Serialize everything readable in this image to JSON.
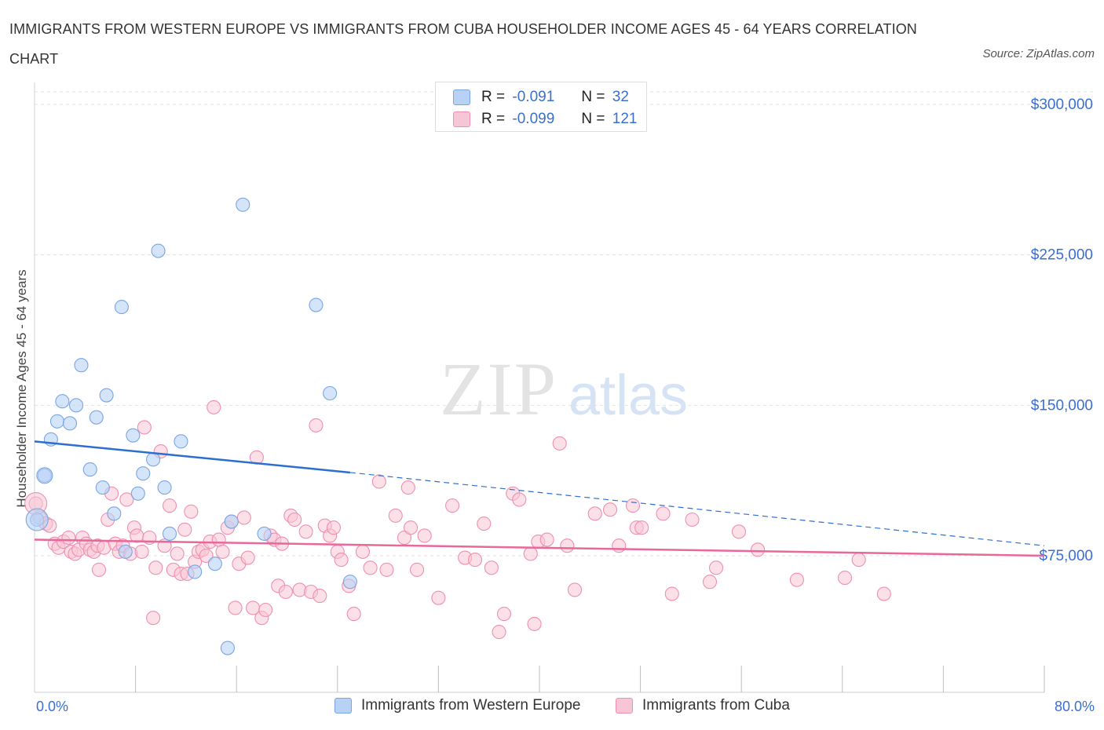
{
  "title": "IMMIGRANTS FROM WESTERN EUROPE VS IMMIGRANTS FROM CUBA HOUSEHOLDER INCOME AGES 45 - 64 YEARS CORRELATION CHART",
  "source": "Source: ZipAtlas.com",
  "watermark": {
    "zip": "ZIP",
    "atlas": "atlas"
  },
  "legend": {
    "rows": [
      {
        "r_label": "R =",
        "r_value": "-0.091",
        "n_label": "N =",
        "n_value": "32"
      },
      {
        "r_label": "R =",
        "r_value": "-0.099",
        "n_label": "N =",
        "n_value": "121"
      }
    ]
  },
  "colors": {
    "blue_fill": "#b8d2f5",
    "blue_stroke": "#7aa5e3",
    "blue_line": "#2d6fcf",
    "pink_fill": "#f7c6d6",
    "pink_stroke": "#ee8fb0",
    "pink_line": "#e8689a",
    "tick_text": "#3a6fd0"
  },
  "chart_data": {
    "type": "scatter",
    "title": "IMMIGRANTS FROM WESTERN EUROPE VS IMMIGRANTS FROM CUBA HOUSEHOLDER INCOME AGES 45 - 64 YEARS CORRELATION CHART",
    "xlabel": "",
    "ylabel": "Householder Income Ages 45 - 64 years",
    "xlim": [
      0,
      80
    ],
    "ylim": [
      0,
      300000
    ],
    "x_tick_labels": [
      "0.0%",
      "80.0%"
    ],
    "y_ticks": [
      75000,
      150000,
      225000,
      300000
    ],
    "y_tick_labels": [
      "$75,000",
      "$150,000",
      "$225,000",
      "$300,000"
    ],
    "grid": true,
    "legend_position": "top-center",
    "series": [
      {
        "name": "Immigrants from Western Europe",
        "color": "#b8d2f5",
        "trend": {
          "x": [
            0,
            25
          ],
          "y": [
            132000,
            116500
          ],
          "dashed_extension": {
            "x": [
              25,
              80
            ],
            "y": [
              116500,
              80000
            ]
          }
        },
        "points": [
          [
            0.2,
            93000
          ],
          [
            0.8,
            115000
          ],
          [
            1.3,
            133000
          ],
          [
            1.8,
            142000
          ],
          [
            2.2,
            152000
          ],
          [
            2.8,
            141000
          ],
          [
            3.3,
            150000
          ],
          [
            3.7,
            170000
          ],
          [
            4.4,
            118000
          ],
          [
            4.9,
            144000
          ],
          [
            5.4,
            109000
          ],
          [
            5.7,
            155000
          ],
          [
            6.3,
            96000
          ],
          [
            6.9,
            199000
          ],
          [
            7.2,
            77000
          ],
          [
            7.8,
            135000
          ],
          [
            8.2,
            106000
          ],
          [
            8.6,
            116000
          ],
          [
            9.4,
            123000
          ],
          [
            9.8,
            227000
          ],
          [
            10.3,
            109000
          ],
          [
            10.7,
            86000
          ],
          [
            11.6,
            132000
          ],
          [
            12.7,
            67000
          ],
          [
            14.3,
            71000
          ],
          [
            15.3,
            29000
          ],
          [
            15.6,
            92000
          ],
          [
            16.5,
            250000
          ],
          [
            18.2,
            86000
          ],
          [
            22.3,
            200000
          ],
          [
            23.4,
            156000
          ],
          [
            25.0,
            62000
          ]
        ]
      },
      {
        "name": "Immigrants from Cuba",
        "color": "#f7c6d6",
        "trend": {
          "x": [
            0,
            80
          ],
          "y": [
            83000,
            75000
          ]
        },
        "points": [
          [
            0.1,
            101000
          ],
          [
            0.4,
            94000
          ],
          [
            0.9,
            91000
          ],
          [
            1.2,
            90000
          ],
          [
            1.6,
            81000
          ],
          [
            1.9,
            79000
          ],
          [
            2.3,
            82000
          ],
          [
            2.7,
            84000
          ],
          [
            2.9,
            77000
          ],
          [
            3.2,
            76000
          ],
          [
            3.5,
            78000
          ],
          [
            3.8,
            84000
          ],
          [
            4.1,
            81000
          ],
          [
            4.4,
            78000
          ],
          [
            4.7,
            77000
          ],
          [
            5.0,
            80000
          ],
          [
            5.1,
            68000
          ],
          [
            5.5,
            79000
          ],
          [
            5.8,
            93000
          ],
          [
            6.1,
            106000
          ],
          [
            6.4,
            81000
          ],
          [
            6.7,
            77000
          ],
          [
            7.0,
            80000
          ],
          [
            7.3,
            103000
          ],
          [
            7.6,
            76000
          ],
          [
            7.9,
            89000
          ],
          [
            8.1,
            85000
          ],
          [
            8.5,
            77000
          ],
          [
            8.7,
            139000
          ],
          [
            9.1,
            84000
          ],
          [
            9.4,
            44000
          ],
          [
            9.6,
            69000
          ],
          [
            10.0,
            127000
          ],
          [
            10.3,
            80000
          ],
          [
            10.7,
            100000
          ],
          [
            11.0,
            68000
          ],
          [
            11.3,
            76000
          ],
          [
            11.6,
            66000
          ],
          [
            11.9,
            88000
          ],
          [
            12.1,
            66000
          ],
          [
            12.4,
            97000
          ],
          [
            12.7,
            72000
          ],
          [
            13.0,
            77000
          ],
          [
            13.3,
            78000
          ],
          [
            13.6,
            75000
          ],
          [
            13.9,
            82000
          ],
          [
            14.2,
            149000
          ],
          [
            14.6,
            83000
          ],
          [
            14.9,
            77000
          ],
          [
            15.3,
            89000
          ],
          [
            15.6,
            92000
          ],
          [
            15.9,
            49000
          ],
          [
            16.2,
            71000
          ],
          [
            16.6,
            94000
          ],
          [
            16.9,
            74000
          ],
          [
            17.3,
            49000
          ],
          [
            17.6,
            124000
          ],
          [
            18.0,
            44000
          ],
          [
            18.3,
            48000
          ],
          [
            18.7,
            85000
          ],
          [
            19.0,
            83000
          ],
          [
            19.3,
            60000
          ],
          [
            19.6,
            81000
          ],
          [
            19.9,
            57000
          ],
          [
            20.3,
            95000
          ],
          [
            20.6,
            93000
          ],
          [
            21.0,
            58000
          ],
          [
            21.5,
            87000
          ],
          [
            21.9,
            57000
          ],
          [
            22.3,
            140000
          ],
          [
            22.6,
            55000
          ],
          [
            23.0,
            90000
          ],
          [
            23.4,
            85000
          ],
          [
            23.7,
            89000
          ],
          [
            24.0,
            77000
          ],
          [
            24.3,
            73000
          ],
          [
            24.9,
            60000
          ],
          [
            25.3,
            46000
          ],
          [
            26.0,
            77000
          ],
          [
            26.6,
            69000
          ],
          [
            27.3,
            112000
          ],
          [
            27.9,
            68000
          ],
          [
            28.6,
            95000
          ],
          [
            29.3,
            84000
          ],
          [
            29.6,
            109000
          ],
          [
            29.8,
            89000
          ],
          [
            30.3,
            68000
          ],
          [
            30.9,
            85000
          ],
          [
            32.0,
            54000
          ],
          [
            33.1,
            100000
          ],
          [
            34.1,
            74000
          ],
          [
            34.9,
            73000
          ],
          [
            35.6,
            91000
          ],
          [
            36.2,
            69000
          ],
          [
            36.8,
            37000
          ],
          [
            37.2,
            46000
          ],
          [
            37.9,
            106000
          ],
          [
            38.4,
            103000
          ],
          [
            39.3,
            76000
          ],
          [
            39.6,
            41000
          ],
          [
            39.9,
            82000
          ],
          [
            40.6,
            83000
          ],
          [
            41.6,
            131000
          ],
          [
            42.2,
            80000
          ],
          [
            42.8,
            58000
          ],
          [
            44.4,
            96000
          ],
          [
            45.6,
            98000
          ],
          [
            46.3,
            80000
          ],
          [
            47.4,
            100000
          ],
          [
            47.7,
            89000
          ],
          [
            48.1,
            89000
          ],
          [
            49.8,
            96000
          ],
          [
            50.5,
            56000
          ],
          [
            52.1,
            93000
          ],
          [
            53.5,
            62000
          ],
          [
            54.0,
            69000
          ],
          [
            55.8,
            87000
          ],
          [
            57.3,
            78000
          ],
          [
            60.4,
            63000
          ],
          [
            64.2,
            64000
          ],
          [
            65.3,
            73000
          ],
          [
            67.3,
            56000
          ]
        ]
      }
    ]
  },
  "axes": {
    "ylabel": "Householder Income Ages 45 - 64 years",
    "x_left": "0.0%",
    "x_right": "80.0%"
  }
}
